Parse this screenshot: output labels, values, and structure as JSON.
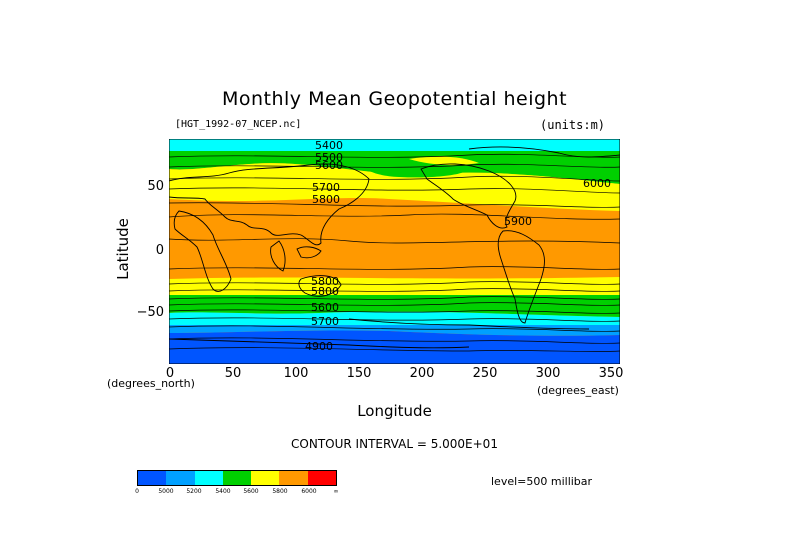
{
  "header": {
    "title": "Monthly Mean Geopotential height",
    "dataset": "[HGT_1992-07_NCEP.nc]",
    "units": "(units:m)"
  },
  "axes": {
    "ylabel": "Latitude",
    "xlabel": "Longitude",
    "x_unit": "(degrees_east)",
    "y_unit": "(degrees_north)",
    "xticks": [
      "0",
      "50",
      "100",
      "150",
      "200",
      "250",
      "300",
      "350"
    ],
    "yticks": [
      "50",
      "0",
      "−50"
    ]
  },
  "footer": {
    "interval": "CONTOUR INTERVAL = 5.000E+01",
    "level": "level=500 millibar"
  },
  "legend": {
    "colors": [
      "#0055ff",
      "#00a0ff",
      "#00ffff",
      "#00d000",
      "#ffff00",
      "#ff9900",
      "#ff0000"
    ],
    "labels": [
      "0",
      "5000",
      "5200",
      "5400",
      "5600",
      "5800",
      "6000",
      "∞"
    ]
  },
  "contour_labels": [
    "5400",
    "5500",
    "5600",
    "5700",
    "5800",
    "5800",
    "5900",
    "5800",
    "5600",
    "5700",
    "4900",
    "6000"
  ],
  "chart_data": {
    "type": "heatmap",
    "variable": "Monthly Mean Geopotential height",
    "level": "500 millibar",
    "xlim": [
      0,
      357.5
    ],
    "ylim": [
      -90,
      90
    ],
    "x_ticks": [
      0,
      50,
      100,
      150,
      200,
      250,
      300,
      350
    ],
    "y_ticks": [
      -50,
      0,
      50
    ],
    "contour_interval": 50,
    "zonal_bands": [
      {
        "lat": [
          60,
          90
        ],
        "value": 5500
      },
      {
        "lat": [
          40,
          60
        ],
        "value": 5700
      },
      {
        "lat": [
          -25,
          40
        ],
        "value": 5850
      },
      {
        "lat": [
          -35,
          -25
        ],
        "value": 5700
      },
      {
        "lat": [
          -45,
          -35
        ],
        "value": 5500
      },
      {
        "lat": [
          -60,
          -45
        ],
        "value": 5300
      },
      {
        "lat": [
          -90,
          -60
        ],
        "value": 5100
      }
    ]
  }
}
